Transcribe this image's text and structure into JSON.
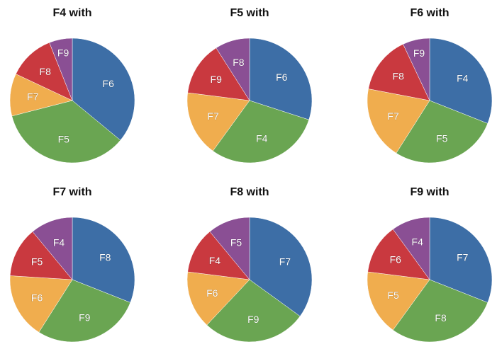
{
  "colors": {
    "blue": "#3d6ea6",
    "green": "#6aa552",
    "orange": "#f0ad4e",
    "red": "#c9393f",
    "purple": "#8a4f94"
  },
  "chart_data": [
    {
      "type": "pie",
      "title": "F4 with",
      "slices": [
        {
          "label": "F6",
          "value": 36,
          "color": "#3d6ea6"
        },
        {
          "label": "F5",
          "value": 35,
          "color": "#6aa552"
        },
        {
          "label": "F7",
          "value": 11,
          "color": "#f0ad4e"
        },
        {
          "label": "F8",
          "value": 12,
          "color": "#c9393f"
        },
        {
          "label": "F9",
          "value": 6,
          "color": "#8a4f94"
        }
      ]
    },
    {
      "type": "pie",
      "title": "F5 with",
      "slices": [
        {
          "label": "F6",
          "value": 30,
          "color": "#3d6ea6"
        },
        {
          "label": "F4",
          "value": 30,
          "color": "#6aa552"
        },
        {
          "label": "F7",
          "value": 17,
          "color": "#f0ad4e"
        },
        {
          "label": "F9",
          "value": 14,
          "color": "#c9393f"
        },
        {
          "label": "F8",
          "value": 9,
          "color": "#8a4f94"
        }
      ]
    },
    {
      "type": "pie",
      "title": "F6 with",
      "slices": [
        {
          "label": "F4",
          "value": 31,
          "color": "#3d6ea6"
        },
        {
          "label": "F5",
          "value": 28,
          "color": "#6aa552"
        },
        {
          "label": "F7",
          "value": 19,
          "color": "#f0ad4e"
        },
        {
          "label": "F8",
          "value": 15,
          "color": "#c9393f"
        },
        {
          "label": "F9",
          "value": 7,
          "color": "#8a4f94"
        }
      ]
    },
    {
      "type": "pie",
      "title": "F7 with",
      "slices": [
        {
          "label": "F8",
          "value": 31,
          "color": "#3d6ea6"
        },
        {
          "label": "F9",
          "value": 28,
          "color": "#6aa552"
        },
        {
          "label": "F6",
          "value": 17,
          "color": "#f0ad4e"
        },
        {
          "label": "F5",
          "value": 13,
          "color": "#c9393f"
        },
        {
          "label": "F4",
          "value": 11,
          "color": "#8a4f94"
        }
      ]
    },
    {
      "type": "pie",
      "title": "F8 with",
      "slices": [
        {
          "label": "F7",
          "value": 35,
          "color": "#3d6ea6"
        },
        {
          "label": "F9",
          "value": 27,
          "color": "#6aa552"
        },
        {
          "label": "F6",
          "value": 15,
          "color": "#f0ad4e"
        },
        {
          "label": "F4",
          "value": 12,
          "color": "#c9393f"
        },
        {
          "label": "F5",
          "value": 11,
          "color": "#8a4f94"
        }
      ]
    },
    {
      "type": "pie",
      "title": "F9 with",
      "slices": [
        {
          "label": "F7",
          "value": 31,
          "color": "#3d6ea6"
        },
        {
          "label": "F8",
          "value": 29,
          "color": "#6aa552"
        },
        {
          "label": "F5",
          "value": 17,
          "color": "#f0ad4e"
        },
        {
          "label": "F6",
          "value": 13,
          "color": "#c9393f"
        },
        {
          "label": "F4",
          "value": 10,
          "color": "#8a4f94"
        }
      ]
    }
  ]
}
